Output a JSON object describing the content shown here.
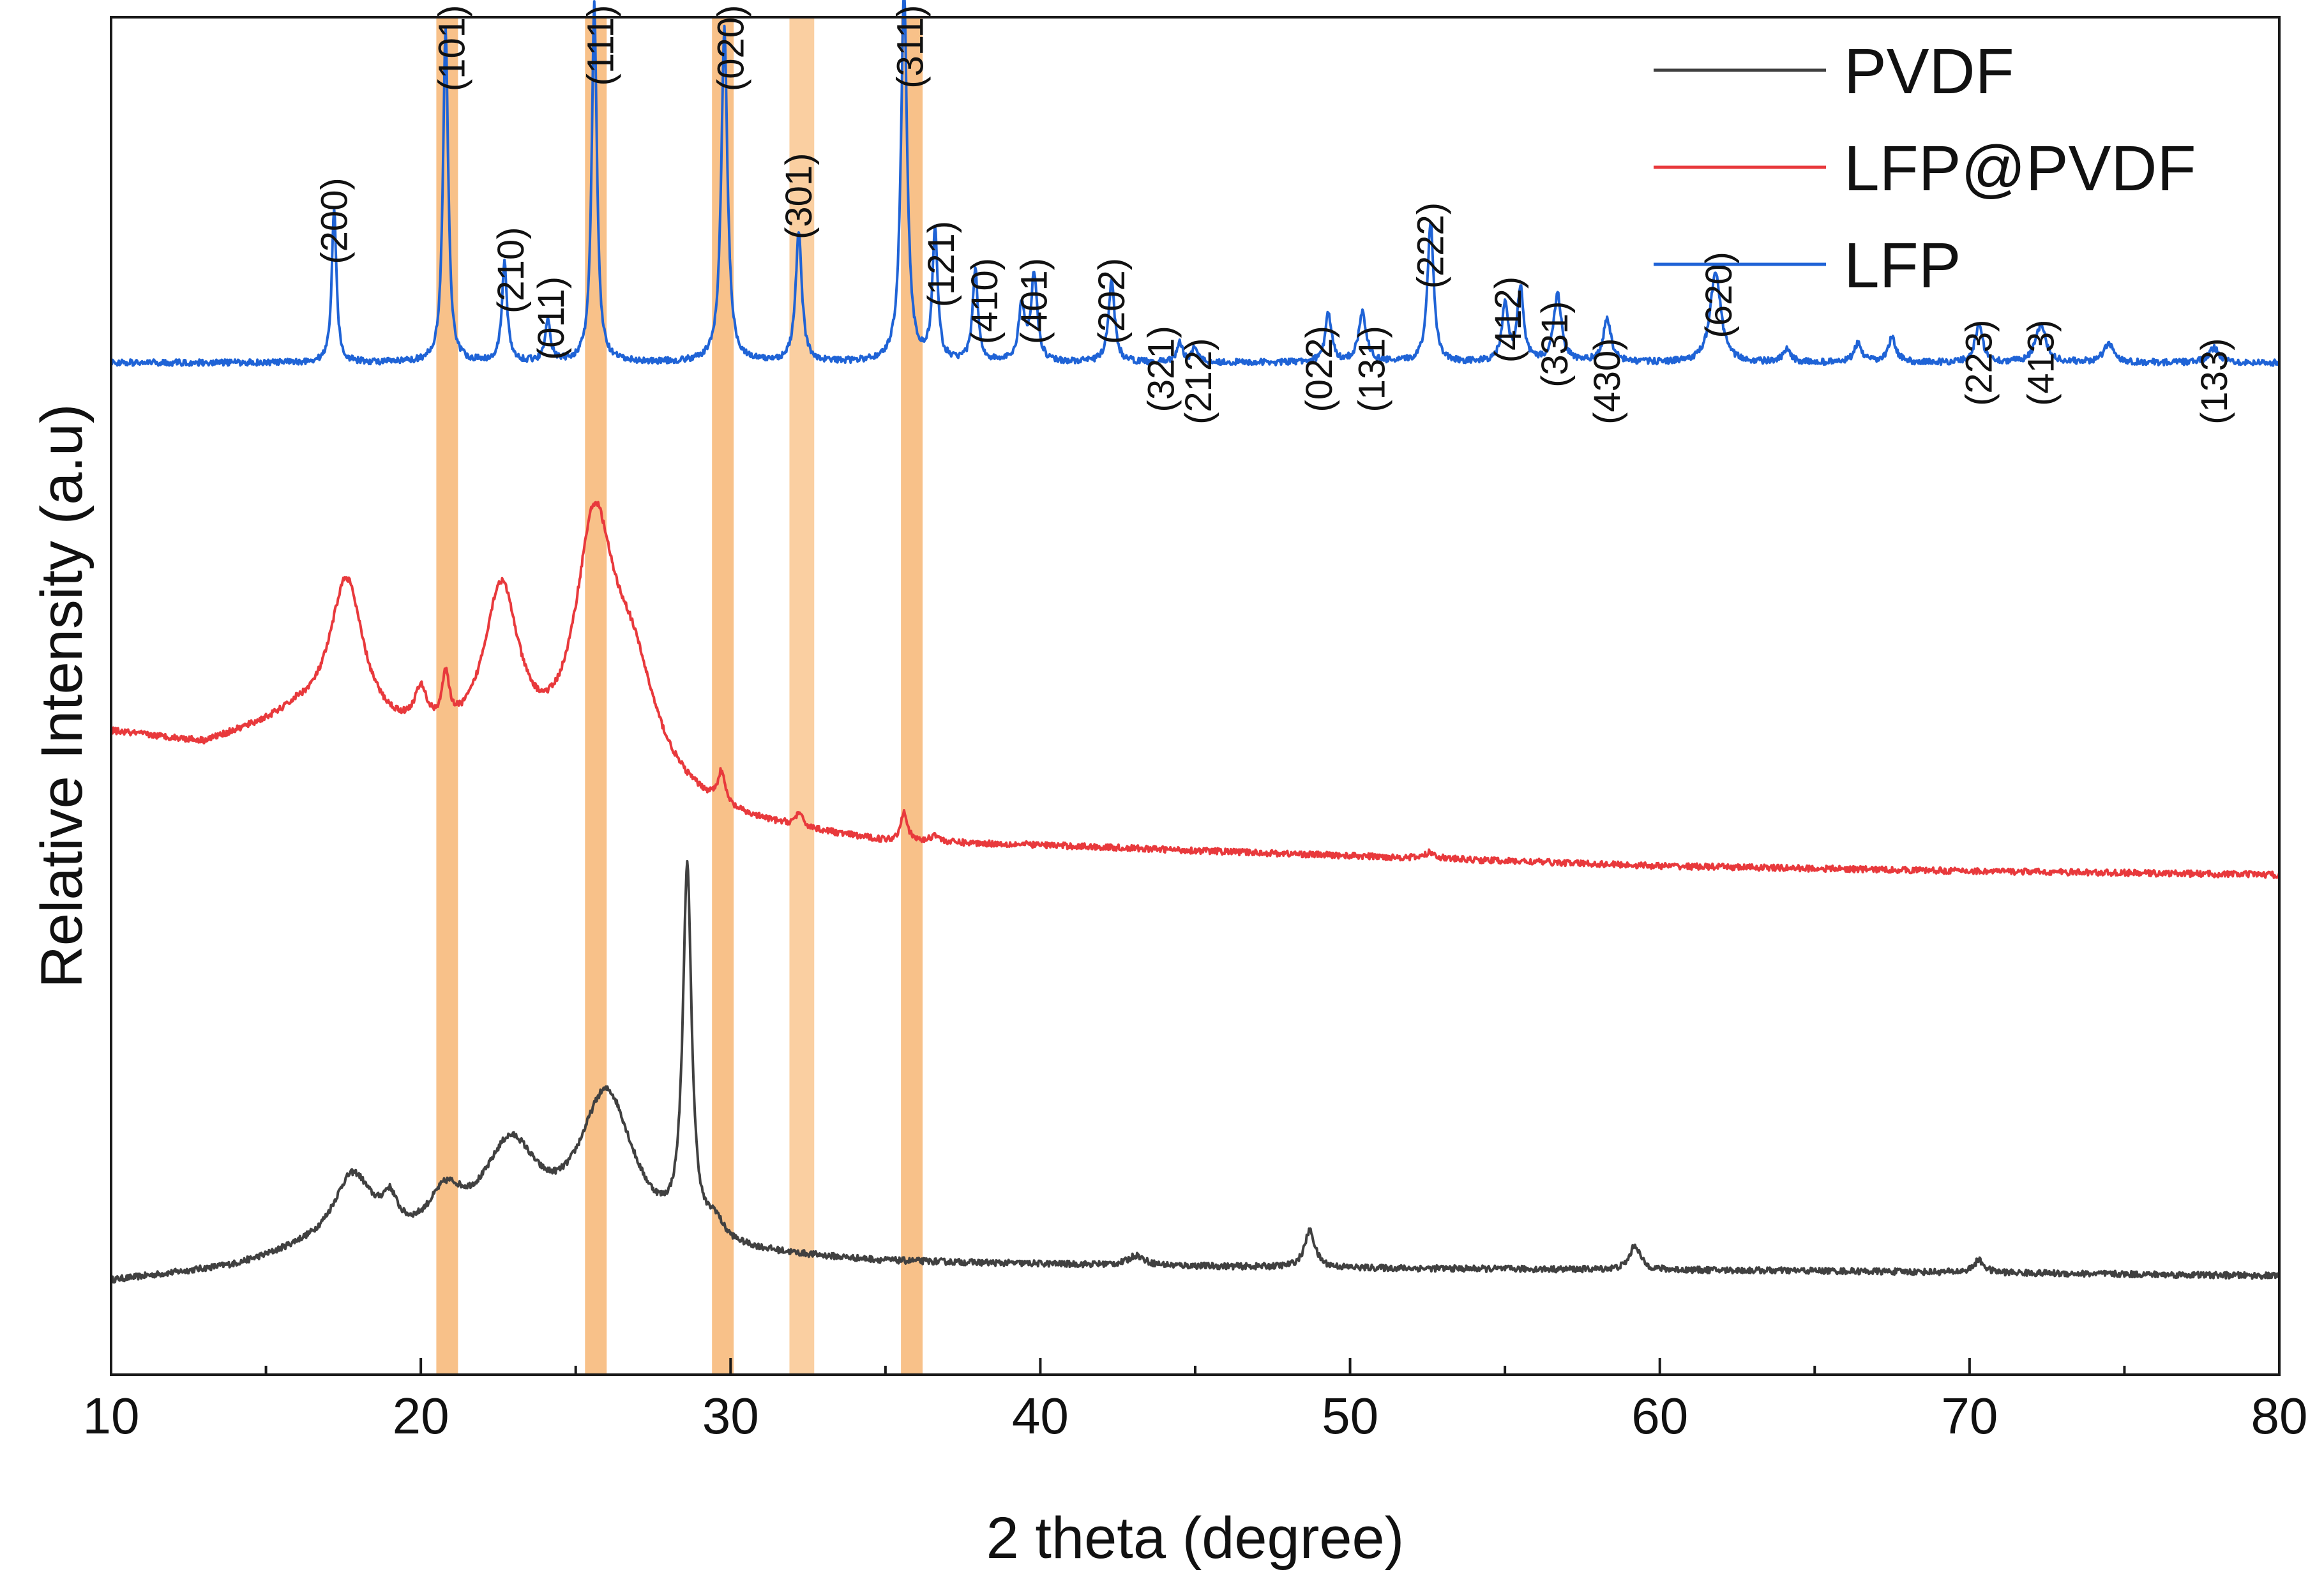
{
  "chart_data": {
    "type": "line",
    "title": "",
    "xlabel": "2 theta (degree)",
    "ylabel": "Relative Intensity (a.u)",
    "xlim": [
      10,
      80
    ],
    "ylim": [
      0,
      11
    ],
    "yticks_shown": false,
    "grid": false,
    "legend_position": "top-right",
    "xticks": [
      10,
      20,
      30,
      40,
      50,
      60,
      70,
      80
    ],
    "xtick_labels": [
      "10",
      "20",
      "30",
      "40",
      "50",
      "60",
      "70",
      "80"
    ],
    "highlight_bands": [
      {
        "x": [
          20.5,
          21.2
        ],
        "color": "#f5a04a"
      },
      {
        "x": [
          25.3,
          26.0
        ],
        "color": "#f5a04a"
      },
      {
        "x": [
          29.4,
          30.1
        ],
        "color": "#f5a04a"
      },
      {
        "x": [
          31.9,
          32.7
        ],
        "color": "#f7b56e"
      },
      {
        "x": [
          35.5,
          36.2
        ],
        "color": "#f5a04a"
      }
    ],
    "series": [
      {
        "name": "PVDF",
        "color": "#404040",
        "baseline": [
          [
            10,
            0.75
          ],
          [
            14,
            0.85
          ],
          [
            16,
            0.95
          ],
          [
            30,
            0.95
          ],
          [
            35,
            0.9
          ],
          [
            50,
            0.86
          ],
          [
            65,
            0.84
          ],
          [
            80,
            0.8
          ]
        ],
        "peaks": [
          {
            "x": 17.8,
            "h": 0.6,
            "w": 0.8
          },
          {
            "x": 19.0,
            "h": 0.25,
            "w": 0.3
          },
          {
            "x": 20.8,
            "h": 0.35,
            "w": 0.7
          },
          {
            "x": 22.9,
            "h": 0.8,
            "w": 1.1
          },
          {
            "x": 26.0,
            "h": 1.25,
            "w": 1.1
          },
          {
            "x": 28.6,
            "h": 2.95,
            "w": 0.17
          },
          {
            "x": 29.5,
            "h": 0.15,
            "w": 0.3
          },
          {
            "x": 43.1,
            "h": 0.08,
            "w": 0.3
          },
          {
            "x": 48.7,
            "h": 0.3,
            "w": 0.2
          },
          {
            "x": 59.2,
            "h": 0.2,
            "w": 0.2
          },
          {
            "x": 70.3,
            "h": 0.1,
            "w": 0.2
          }
        ]
      },
      {
        "name": "LFP@PVDF",
        "color": "#e8393c",
        "baseline": [
          [
            10,
            5.2
          ],
          [
            13,
            5.1
          ],
          [
            16,
            5.3
          ],
          [
            30,
            4.45
          ],
          [
            35,
            4.3
          ],
          [
            40,
            4.28
          ],
          [
            50,
            4.2
          ],
          [
            60,
            4.12
          ],
          [
            70,
            4.08
          ],
          [
            80,
            4.05
          ]
        ],
        "peaks": [
          {
            "x": 17.6,
            "h": 1.2,
            "w": 0.65
          },
          {
            "x": 20.0,
            "h": 0.3,
            "w": 0.25
          },
          {
            "x": 20.8,
            "h": 0.38,
            "w": 0.15
          },
          {
            "x": 22.6,
            "h": 1.35,
            "w": 0.7
          },
          {
            "x": 25.6,
            "h": 1.9,
            "w": 0.75
          },
          {
            "x": 26.8,
            "h": 0.9,
            "w": 1.0
          },
          {
            "x": 29.7,
            "h": 0.25,
            "w": 0.15
          },
          {
            "x": 32.2,
            "h": 0.1,
            "w": 0.15
          },
          {
            "x": 35.6,
            "h": 0.25,
            "w": 0.12
          },
          {
            "x": 36.6,
            "h": 0.06,
            "w": 0.15
          },
          {
            "x": 52.6,
            "h": 0.05,
            "w": 0.2
          }
        ]
      },
      {
        "name": "LFP",
        "color": "#1f63d6",
        "baseline": [
          [
            10,
            8.2
          ],
          [
            30,
            8.2
          ],
          [
            45,
            8.2
          ],
          [
            80,
            8.2
          ]
        ],
        "peaks": [
          {
            "x": 17.2,
            "h": 1.25,
            "w": 0.09
          },
          {
            "x": 20.8,
            "h": 2.7,
            "w": 0.1
          },
          {
            "x": 22.7,
            "h": 0.8,
            "w": 0.1
          },
          {
            "x": 24.1,
            "h": 0.35,
            "w": 0.1
          },
          {
            "x": 25.6,
            "h": 2.9,
            "w": 0.1
          },
          {
            "x": 29.8,
            "h": 2.7,
            "w": 0.12
          },
          {
            "x": 32.2,
            "h": 1.05,
            "w": 0.12
          },
          {
            "x": 35.6,
            "h": 3.0,
            "w": 0.12
          },
          {
            "x": 36.6,
            "h": 1.05,
            "w": 0.1
          },
          {
            "x": 37.9,
            "h": 0.75,
            "w": 0.1
          },
          {
            "x": 39.4,
            "h": 0.45,
            "w": 0.12
          },
          {
            "x": 39.8,
            "h": 0.7,
            "w": 0.12
          },
          {
            "x": 42.3,
            "h": 0.65,
            "w": 0.12
          },
          {
            "x": 44.5,
            "h": 0.15,
            "w": 0.12
          },
          {
            "x": 45.0,
            "h": 0.12,
            "w": 0.12
          },
          {
            "x": 49.3,
            "h": 0.4,
            "w": 0.12
          },
          {
            "x": 50.4,
            "h": 0.4,
            "w": 0.15
          },
          {
            "x": 52.6,
            "h": 1.15,
            "w": 0.12
          },
          {
            "x": 55.0,
            "h": 0.45,
            "w": 0.12
          },
          {
            "x": 55.5,
            "h": 0.6,
            "w": 0.12
          },
          {
            "x": 56.7,
            "h": 0.55,
            "w": 0.15
          },
          {
            "x": 58.3,
            "h": 0.35,
            "w": 0.15
          },
          {
            "x": 61.8,
            "h": 0.75,
            "w": 0.2
          },
          {
            "x": 64.1,
            "h": 0.1,
            "w": 0.15
          },
          {
            "x": 66.4,
            "h": 0.15,
            "w": 0.15
          },
          {
            "x": 67.5,
            "h": 0.2,
            "w": 0.15
          },
          {
            "x": 70.3,
            "h": 0.3,
            "w": 0.15
          },
          {
            "x": 72.3,
            "h": 0.3,
            "w": 0.2
          },
          {
            "x": 74.5,
            "h": 0.15,
            "w": 0.2
          },
          {
            "x": 77.9,
            "h": 0.12,
            "w": 0.2
          }
        ]
      }
    ],
    "annotations": [
      {
        "text": "(200)",
        "x": 17.2,
        "y": 9.7
      },
      {
        "text": "(101)",
        "x": 21.0,
        "y": 11.1
      },
      {
        "text": "(210)",
        "x": 22.9,
        "y": 9.3
      },
      {
        "text": "(011)",
        "x": 24.2,
        "y": 8.9
      },
      {
        "text": "(111)",
        "x": 25.8,
        "y": 11.1
      },
      {
        "text": "(020)",
        "x": 30.0,
        "y": 11.1
      },
      {
        "text": "(301)",
        "x": 32.2,
        "y": 9.9
      },
      {
        "text": "(311)",
        "x": 35.8,
        "y": 11.1
      },
      {
        "text": "(121)",
        "x": 36.8,
        "y": 9.35
      },
      {
        "text": "(410)",
        "x": 38.2,
        "y": 9.05
      },
      {
        "text": "(401)",
        "x": 39.8,
        "y": 9.05
      },
      {
        "text": "(202)",
        "x": 42.3,
        "y": 9.05
      },
      {
        "text": "(321)",
        "x": 43.9,
        "y": 8.5
      },
      {
        "text": "(212)",
        "x": 45.1,
        "y": 8.4
      },
      {
        "text": "(022)",
        "x": 49.0,
        "y": 8.5
      },
      {
        "text": "(131)",
        "x": 50.7,
        "y": 8.5
      },
      {
        "text": "(222)",
        "x": 52.6,
        "y": 9.5
      },
      {
        "text": "(412)",
        "x": 55.1,
        "y": 8.9
      },
      {
        "text": "(331)",
        "x": 56.6,
        "y": 8.7
      },
      {
        "text": "(430)",
        "x": 58.3,
        "y": 8.4
      },
      {
        "text": "(620)",
        "x": 61.9,
        "y": 9.1
      },
      {
        "text": "(223)",
        "x": 70.3,
        "y": 8.55
      },
      {
        "text": "(413)",
        "x": 72.3,
        "y": 8.55
      },
      {
        "text": "(133)",
        "x": 77.9,
        "y": 8.4
      }
    ]
  }
}
